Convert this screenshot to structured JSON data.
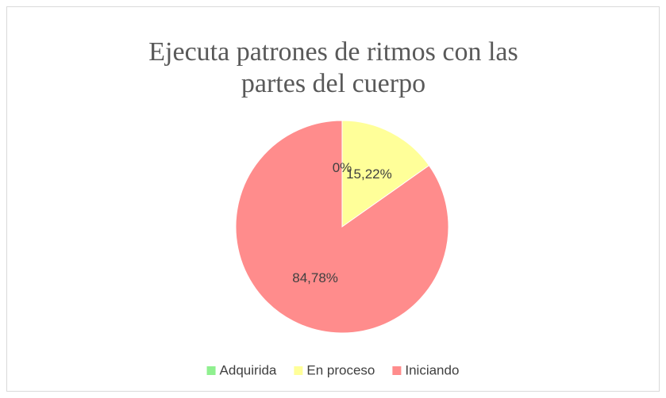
{
  "chart_data": {
    "type": "pie",
    "title": "Ejecuta patrones de ritmos con las partes del cuerpo",
    "categories": [
      "Adquirida",
      "En proceso",
      "Iniciando"
    ],
    "values": [
      0,
      15.22,
      84.78
    ],
    "value_labels": [
      "0%",
      "15,22%",
      "84,78%"
    ],
    "colors": [
      "#8ff08f",
      "#ffff99",
      "#ff8c8c"
    ],
    "legend": "bottom"
  }
}
